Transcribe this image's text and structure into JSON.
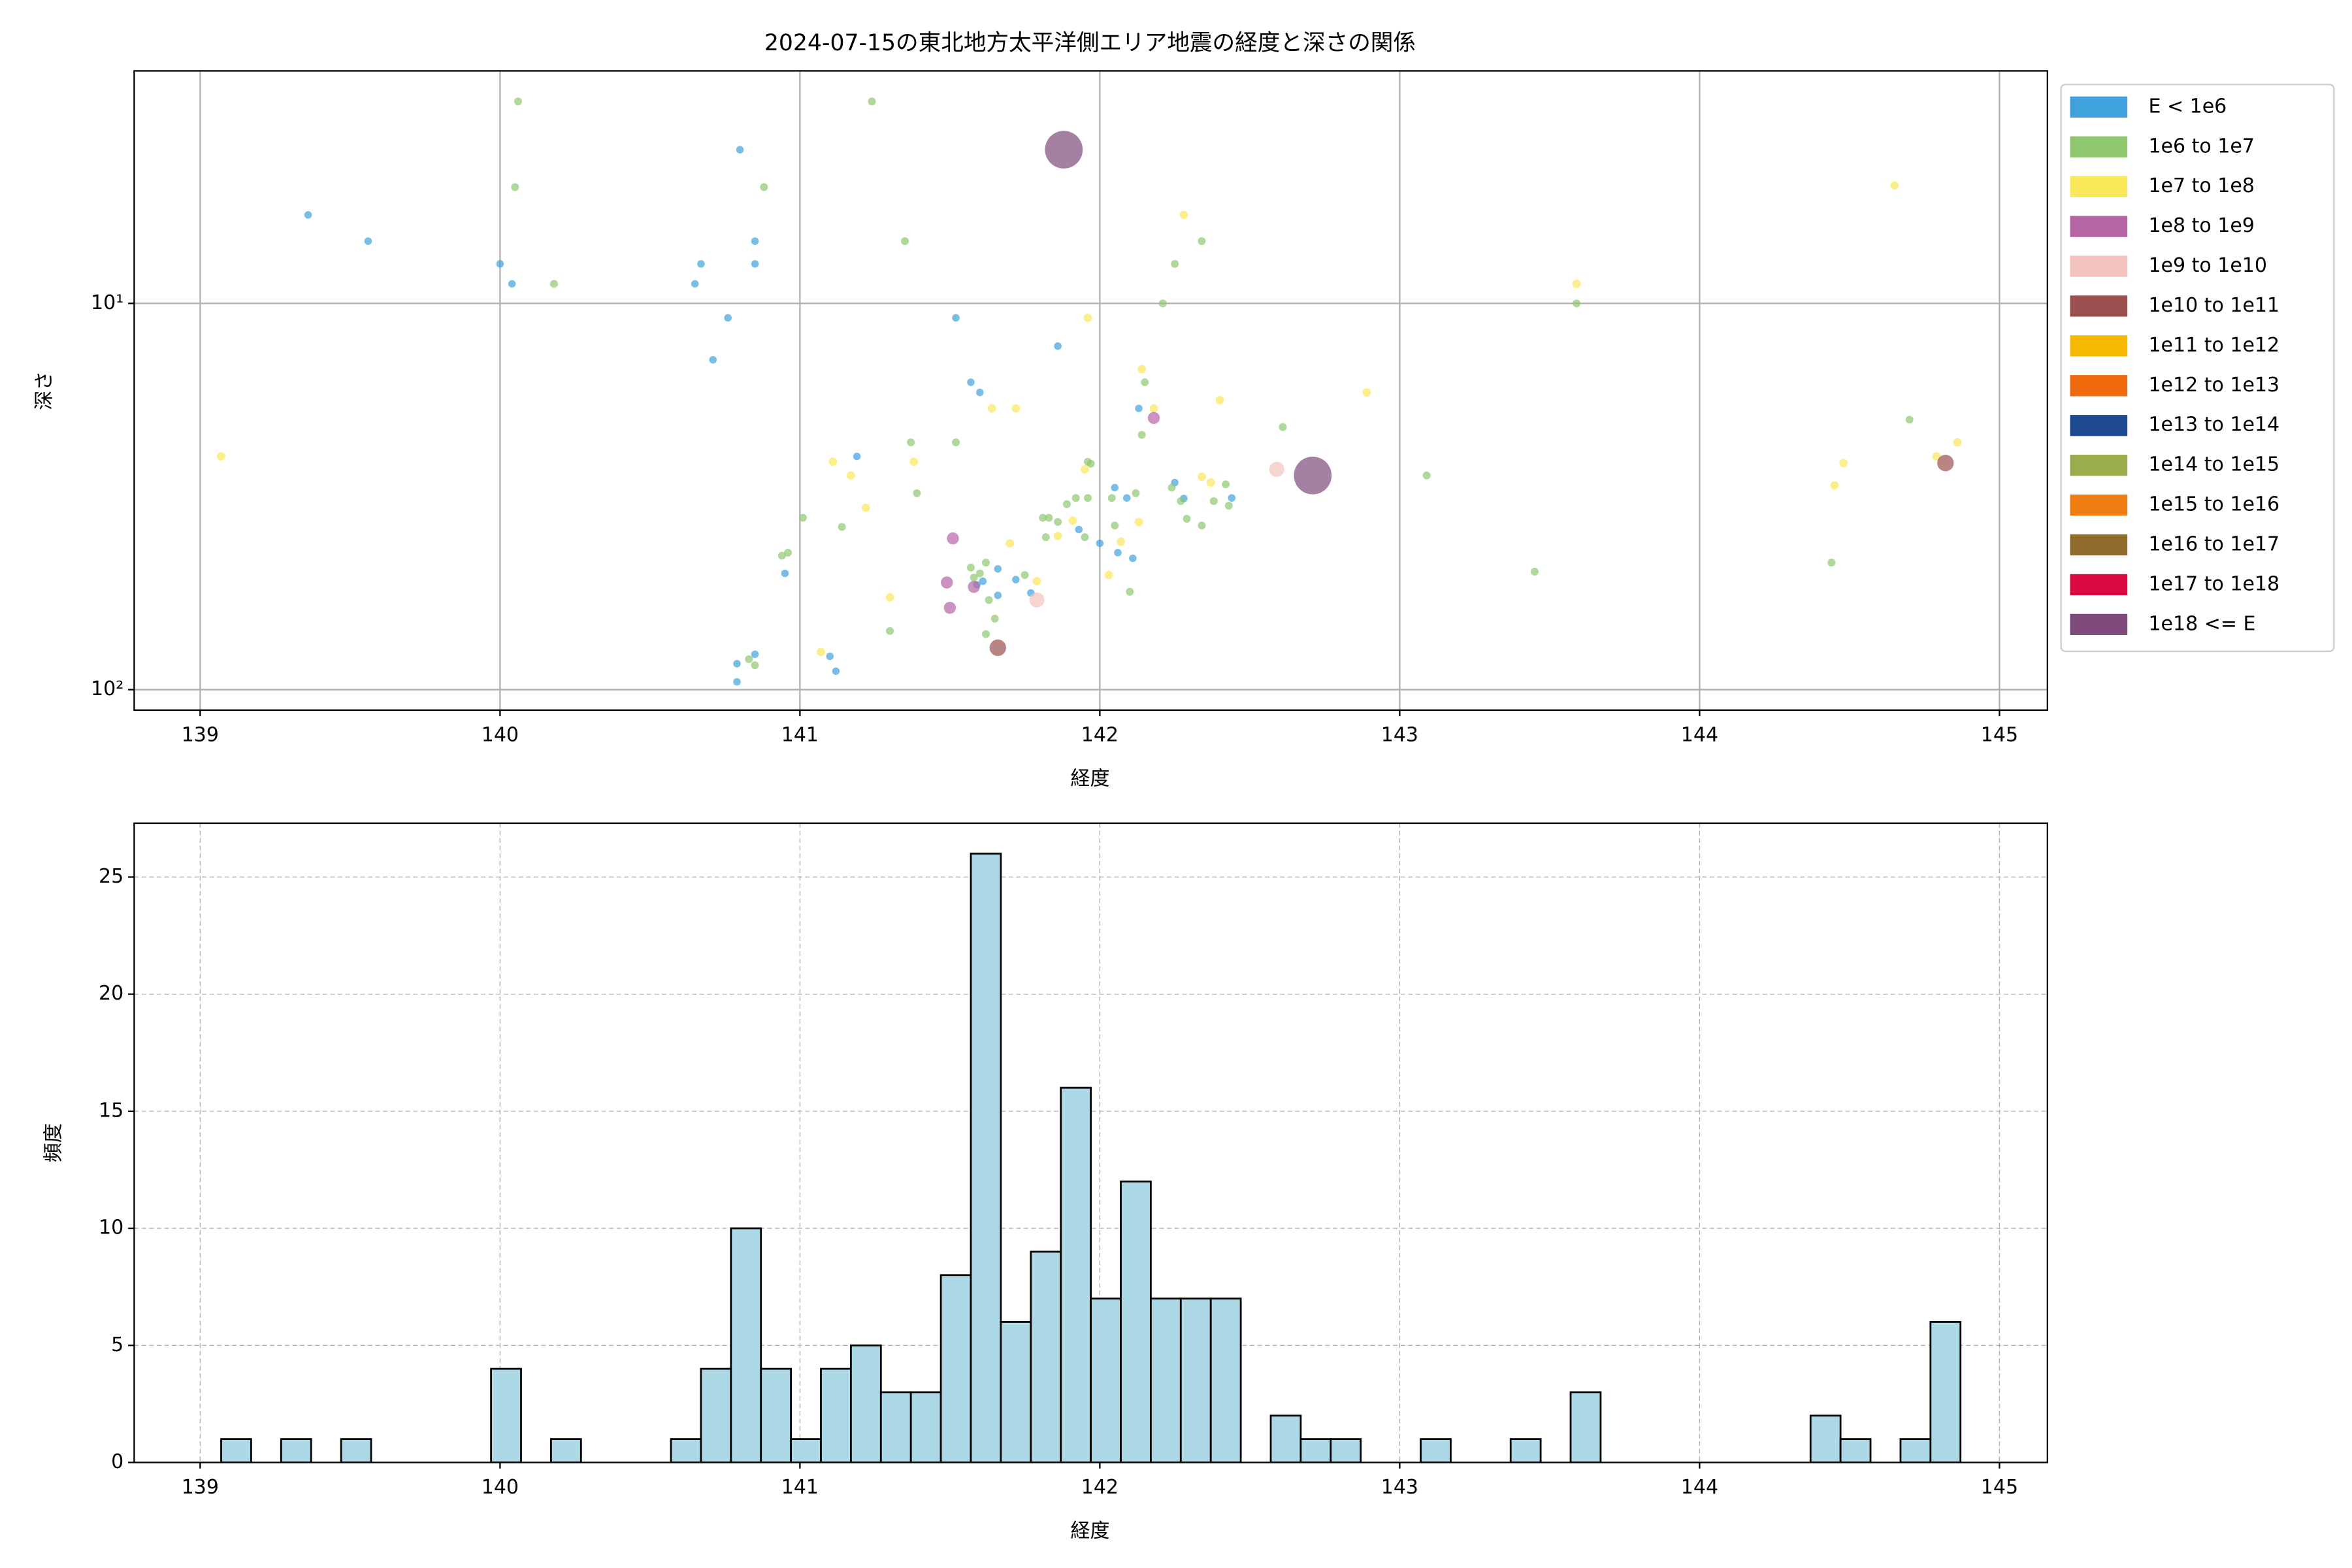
{
  "chart_data": [
    {
      "type": "scatter",
      "title": "2024-07-15の東北地方太平洋側エリア地震の経度と深さの関係",
      "xlabel": "経度",
      "ylabel": "深さ",
      "xlim": [
        138.78,
        145.16
      ],
      "ylim": [
        113,
        2.5
      ],
      "log_y": true,
      "xticks": [
        139,
        140,
        141,
        142,
        143,
        144,
        145
      ],
      "yticks": [
        {
          "value": 10,
          "label": "10¹"
        },
        {
          "value": 100,
          "label": "10²"
        }
      ],
      "grid": true,
      "legend": "right",
      "series": [
        {
          "name": "E < 1e6",
          "color": "#3fa2dc",
          "size": 2.5,
          "x": [
            139.36,
            139.56,
            140.0,
            140.04,
            140.65,
            140.67,
            140.8,
            140.85,
            140.85,
            140.76,
            140.71,
            141.52,
            141.86,
            141.57,
            141.6,
            142.13,
            141.19,
            142.05,
            142.09,
            142.25,
            142.28,
            142.44,
            141.93,
            142.0,
            142.06,
            142.11,
            141.66,
            141.72,
            141.61,
            141.77,
            141.66,
            141.59,
            140.95,
            141.1,
            141.12,
            140.79,
            140.85,
            140.79
          ],
          "values": [
            5.9,
            6.9,
            7.9,
            8.9,
            8.9,
            7.9,
            4.0,
            6.9,
            7.9,
            10.9,
            14.0,
            10.9,
            12.9,
            16.0,
            17.0,
            18.7,
            24.9,
            30.0,
            31.9,
            29.1,
            32.0,
            31.9,
            38.5,
            41.8,
            44.2,
            45.7,
            48.7,
            51.9,
            52.4,
            56.2,
            57.0,
            53.5,
            50.0,
            82,
            89.6,
            85.7,
            81,
            95.5
          ]
        },
        {
          "name": "1e6 to 1e7",
          "color": "#8fc86f",
          "size": 2.6,
          "x": [
            140.06,
            141.24,
            140.05,
            140.88,
            140.18,
            141.35,
            142.34,
            142.25,
            142.21,
            142.15,
            142.61,
            141.37,
            141.52,
            141.96,
            141.97,
            143.09,
            142.14,
            141.39,
            142.04,
            142.12,
            142.24,
            142.38,
            142.42,
            141.01,
            141.14,
            141.3,
            141.81,
            141.83,
            141.89,
            141.92,
            141.86,
            141.96,
            142.05,
            142.27,
            142.29,
            142.34,
            142.43,
            141.82,
            141.95,
            140.96,
            140.94,
            141.57,
            141.62,
            141.6,
            141.58,
            141.75,
            141.63,
            141.65,
            141.62,
            142.1,
            143.45,
            144.44,
            144.7,
            143.59,
            140.85,
            140.83
          ],
          "values": [
            3.0,
            3.0,
            5.0,
            5.0,
            8.9,
            6.9,
            6.9,
            7.9,
            10,
            16,
            20.9,
            22.9,
            22.9,
            25.7,
            26,
            27.9,
            21.9,
            31,
            31.9,
            31,
            30,
            32.5,
            29.4,
            35.9,
            37.9,
            70.5,
            35.9,
            35.9,
            33.1,
            31.9,
            36.8,
            31.9,
            37.6,
            32.5,
            36.1,
            37.6,
            33.4,
            40.3,
            40.3,
            44.2,
            45,
            48.3,
            46.9,
            50,
            51.3,
            50.5,
            58.6,
            65.5,
            71.8,
            55.8,
            49.5,
            46.9,
            20,
            10,
            86.5,
            83.4
          ]
        },
        {
          "name": "1e7 to 1e8",
          "color": "#fbe85a",
          "size": 2.8,
          "x": [
            139.07,
            142.28,
            144.65,
            143.59,
            141.96,
            142.14,
            141.64,
            141.72,
            142.4,
            142.89,
            141.11,
            141.38,
            141.17,
            141.22,
            141.95,
            142.34,
            142.37,
            141.86,
            142.07,
            142.13,
            141.7,
            142.03,
            141.79,
            141.3,
            141.07,
            144.48,
            144.45,
            144.79,
            144.86,
            142.18,
            141.91
          ],
          "values": [
            24.9,
            5.9,
            4.95,
            8.9,
            10.9,
            14.8,
            18.7,
            18.7,
            17.8,
            17,
            25.7,
            25.7,
            27.9,
            33.8,
            26.9,
            28.1,
            29.1,
            40,
            41.4,
            36.8,
            41.8,
            50.5,
            52.4,
            57.7,
            79.9,
            25.9,
            29.6,
            24.9,
            22.9,
            18.7,
            36.5
          ]
        },
        {
          "name": "1e8 to 1e9",
          "color": "#b665a5",
          "size": 4,
          "x": [
            141.51,
            141.49,
            141.5,
            141.58,
            142.18
          ],
          "values": [
            40.6,
            52.8,
            61.4,
            54.2,
            19.8
          ]
        },
        {
          "name": "1e9 to 1e10",
          "color": "#f4c2bc",
          "size": 5,
          "x": [
            142.59,
            141.79
          ],
          "values": [
            26.9,
            58.6
          ]
        },
        {
          "name": "1e10 to 1e11",
          "color": "#9b5050",
          "size": 5.5,
          "x": [
            141.66,
            144.82
          ],
          "values": [
            77.9,
            25.9
          ]
        },
        {
          "name": "1e11 to 1e12",
          "color": "#f6b800",
          "size": 6,
          "x": [],
          "values": []
        },
        {
          "name": "1e12 to 1e13",
          "color": "#ee6a0c",
          "size": 7,
          "x": [],
          "values": []
        },
        {
          "name": "1e13 to 1e14",
          "color": "#1d4a8f",
          "size": 8,
          "x": [],
          "values": []
        },
        {
          "name": "1e14 to 1e15",
          "color": "#9aad4d",
          "size": 9,
          "x": [],
          "values": []
        },
        {
          "name": "1e15 to 1e16",
          "color": "#ef7d12",
          "size": 10,
          "x": [],
          "values": []
        },
        {
          "name": "1e16 to 1e17",
          "color": "#8f6b2c",
          "size": 11,
          "x": [],
          "values": []
        },
        {
          "name": "1e17 to 1e18",
          "color": "#dc0840",
          "size": 11.5,
          "x": [],
          "values": []
        },
        {
          "name": "1e18 <= E",
          "color": "#7d4a7a",
          "size": 12.5,
          "x": [
            141.88,
            142.71
          ],
          "values": [
            4.0,
            27.9
          ]
        }
      ]
    },
    {
      "type": "histogram",
      "xlabel": "経度",
      "ylabel": "頻度",
      "xlim": [
        138.78,
        145.16
      ],
      "ylim": [
        0,
        27.3
      ],
      "xticks": [
        139,
        140,
        141,
        142,
        143,
        144,
        145
      ],
      "yticks": [
        0,
        5,
        10,
        15,
        20,
        25
      ],
      "grid": true,
      "grid_style": "dashed",
      "color": "#add8e6",
      "edgecolor": "#000000",
      "bins": [
        139.07,
        139.17,
        139.27,
        139.37,
        139.47,
        139.57,
        139.67,
        139.77,
        139.87,
        139.97,
        140.07,
        140.17,
        140.27,
        140.37,
        140.47,
        140.57,
        140.67,
        140.77,
        140.87,
        140.97,
        141.07,
        141.17,
        141.27,
        141.37,
        141.47,
        141.57,
        141.67,
        141.77,
        141.87,
        141.97,
        142.07,
        142.17,
        142.27,
        142.37,
        142.47,
        142.57,
        142.67,
        142.77,
        142.87,
        142.97,
        143.07,
        143.17,
        143.27,
        143.37,
        143.47,
        143.57,
        143.67,
        143.77,
        143.87,
        143.97,
        144.07,
        144.17,
        144.27,
        144.37,
        144.47,
        144.57,
        144.67,
        144.77,
        144.87
      ],
      "counts": [
        1,
        0,
        1,
        0,
        1,
        0,
        0,
        0,
        0,
        4,
        0,
        1,
        0,
        0,
        0,
        1,
        4,
        10,
        4,
        1,
        4,
        5,
        3,
        3,
        8,
        26,
        6,
        9,
        16,
        7,
        12,
        7,
        7,
        7,
        0,
        2,
        1,
        1,
        0,
        0,
        1,
        0,
        0,
        1,
        0,
        3,
        0,
        0,
        0,
        0,
        0,
        0,
        0,
        2,
        1,
        0,
        1,
        6
      ]
    }
  ]
}
